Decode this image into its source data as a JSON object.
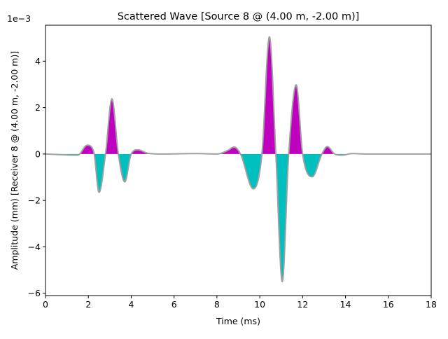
{
  "chart_data": {
    "type": "area",
    "title": "Scattered Wave [Source 8 @ (4.00 m, -2.00 m)]",
    "xlabel": "Time (ms)",
    "ylabel": "Amplitude (mm) [Receiver 8 @ (4.00 m, -2.00 m)]",
    "y_scale_label": "1e−3",
    "y_multiplier": 0.001,
    "xlim": [
      0,
      18
    ],
    "ylim": [
      -6.1,
      5.55
    ],
    "xticks": [
      0,
      2,
      4,
      6,
      8,
      10,
      12,
      14,
      16,
      18
    ],
    "yticks": [
      -6,
      -4,
      -2,
      0,
      2,
      4
    ],
    "ytick_labels": [
      "−6",
      "−4",
      "−2",
      "0",
      "2",
      "4"
    ],
    "grid": false,
    "colors": {
      "positive_fill": "#bf00bf",
      "negative_fill": "#00bfbf",
      "trace_line": "#a0a0a0"
    },
    "series": [
      {
        "values_unit": "x 1e-3 mm",
        "points": [
          [
            0.0,
            0.0
          ],
          [
            1.5,
            -0.05
          ],
          [
            1.95,
            0.38
          ],
          [
            2.25,
            0.1
          ],
          [
            2.5,
            -1.65
          ],
          [
            2.8,
            0.0
          ],
          [
            3.1,
            2.38
          ],
          [
            3.4,
            0.0
          ],
          [
            3.7,
            -1.2
          ],
          [
            4.0,
            0.0
          ],
          [
            4.3,
            0.18
          ],
          [
            4.8,
            0.03
          ],
          [
            5.5,
            0.0
          ],
          [
            7.0,
            0.02
          ],
          [
            8.0,
            0.0
          ],
          [
            8.5,
            0.15
          ],
          [
            8.8,
            0.3
          ],
          [
            9.1,
            0.0
          ],
          [
            9.7,
            -1.5
          ],
          [
            10.1,
            0.0
          ],
          [
            10.45,
            5.05
          ],
          [
            10.75,
            0.0
          ],
          [
            11.05,
            -5.5
          ],
          [
            11.35,
            0.0
          ],
          [
            11.7,
            2.98
          ],
          [
            12.0,
            0.0
          ],
          [
            12.45,
            -0.98
          ],
          [
            12.9,
            0.0
          ],
          [
            13.15,
            0.32
          ],
          [
            13.5,
            0.0
          ],
          [
            13.85,
            -0.05
          ],
          [
            14.3,
            0.02
          ],
          [
            15.0,
            0.0
          ],
          [
            18.0,
            0.0
          ]
        ]
      }
    ]
  }
}
